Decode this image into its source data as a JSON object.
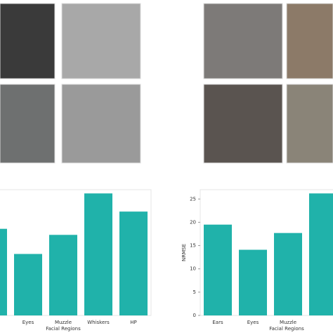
{
  "chart_data": [
    {
      "type": "bar",
      "x_label": "Facial Regions",
      "categories": [
        null,
        "Eyes",
        "Muzzle",
        "Whiskers",
        "HP"
      ],
      "values": [
        18.6,
        13.2,
        17.3,
        26.2,
        22.3
      ],
      "color": "#20b2aa",
      "ylim": [
        0,
        27
      ]
    },
    {
      "type": "bar",
      "x_label": "Facial Regions",
      "y_label": "NRMSE",
      "categories": [
        "Ears",
        "Eyes",
        "Muzzle",
        null
      ],
      "values": [
        19.5,
        14.1,
        17.7,
        26.2
      ],
      "color": "#20b2aa",
      "ylim": [
        0,
        27
      ],
      "yticks": [
        0,
        5,
        10,
        15,
        20,
        25
      ]
    }
  ]
}
